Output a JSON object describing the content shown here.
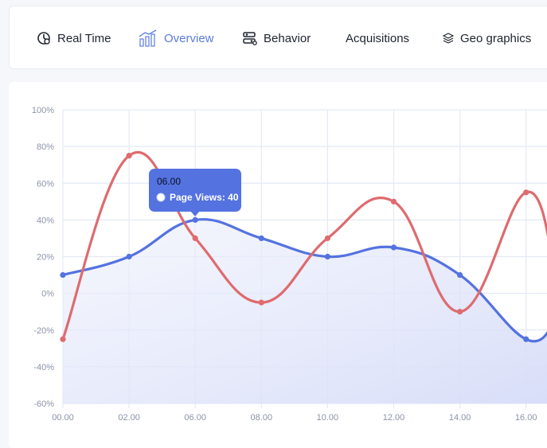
{
  "tabs": [
    {
      "label": "Real Time",
      "icon": "realtime-icon",
      "active": false
    },
    {
      "label": "Overview",
      "icon": "bar-chart-icon",
      "active": true
    },
    {
      "label": "Behavior",
      "icon": "sliders-icon",
      "active": false
    },
    {
      "label": "Acquisitions",
      "icon": "",
      "active": false
    },
    {
      "label": "Geo graphics",
      "icon": "layers-icon",
      "active": false
    }
  ],
  "colors": {
    "accent": "#5b7be0",
    "series_blue": "#5472e0",
    "series_red": "#de6b6f",
    "tooltip": "#5472e0"
  },
  "tooltip": {
    "title": "06.00",
    "label": "Page Views: 40"
  },
  "chart_data": {
    "type": "line",
    "x": [
      "00.00",
      "02.00",
      "06.00",
      "08.00",
      "10.00",
      "12.00",
      "14.00",
      "16.00"
    ],
    "y_ticks": [
      "100%",
      "80%",
      "60%",
      "40%",
      "20%",
      "0%",
      "-20%",
      "-40%",
      "-60%"
    ],
    "ylim": [
      -60,
      100
    ],
    "grid": true,
    "series": [
      {
        "name": "Page Views",
        "color": "#5472e0",
        "area": true,
        "values": [
          10,
          20,
          40,
          30,
          20,
          25,
          10,
          -25
        ]
      },
      {
        "color": "#de6b6f",
        "area": false,
        "values": [
          -25,
          75,
          30,
          -5,
          30,
          50,
          -10,
          55
        ]
      }
    ]
  }
}
